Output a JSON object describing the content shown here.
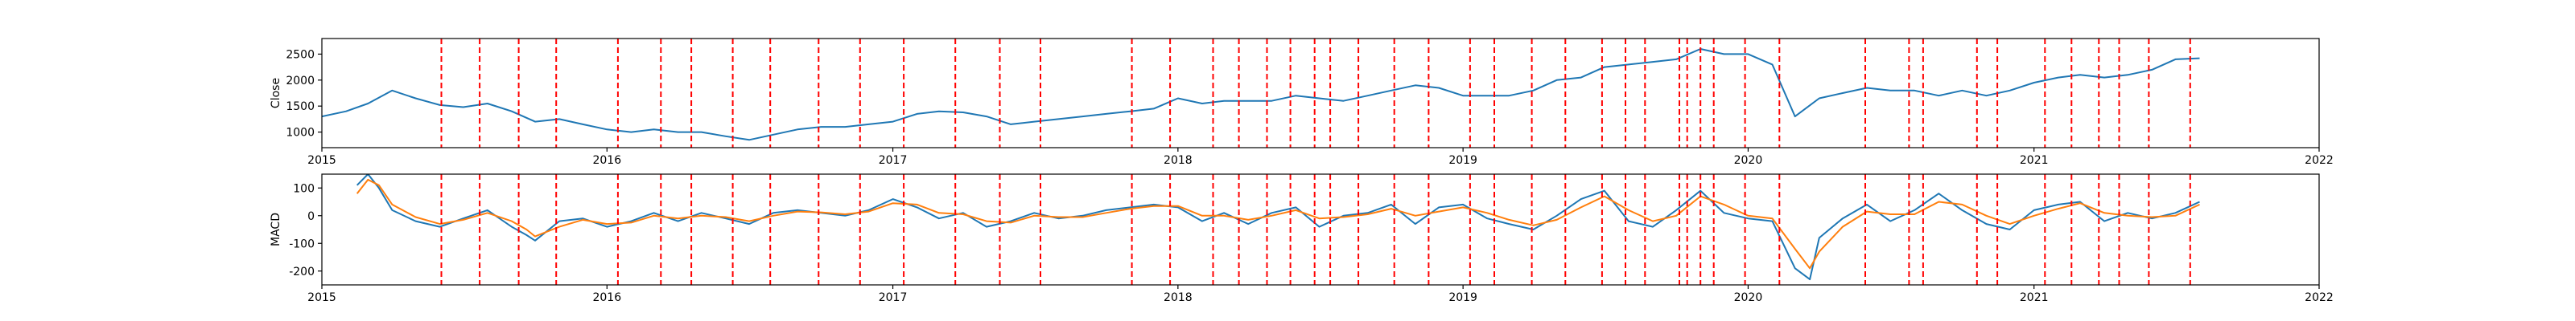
{
  "chart_data": [
    {
      "type": "line",
      "ylabel": "Close",
      "xlim": [
        "2015-01-01",
        "2022-01-01"
      ],
      "ylim": [
        700,
        2800
      ],
      "x_ticks": [
        "2015",
        "2016",
        "2017",
        "2018",
        "2019",
        "2020",
        "2021",
        "2022"
      ],
      "y_ticks": [
        1000,
        1500,
        2000,
        2500
      ],
      "grid": false,
      "series": [
        {
          "color": "#1f77b4",
          "x": [
            "2015-01-01",
            "2015-02-01",
            "2015-03-01",
            "2015-04-01",
            "2015-05-01",
            "2015-06-01",
            "2015-07-01",
            "2015-08-01",
            "2015-09-01",
            "2015-10-01",
            "2015-11-01",
            "2015-12-01",
            "2016-01-01",
            "2016-02-01",
            "2016-03-01",
            "2016-04-01",
            "2016-05-01",
            "2016-06-01",
            "2016-07-01",
            "2016-08-01",
            "2016-09-01",
            "2016-10-01",
            "2016-11-01",
            "2016-12-01",
            "2017-01-01",
            "2017-02-01",
            "2017-03-01",
            "2017-04-01",
            "2017-05-01",
            "2017-06-01",
            "2017-07-01",
            "2017-08-01",
            "2017-09-01",
            "2017-10-01",
            "2017-11-01",
            "2017-12-01",
            "2018-01-01",
            "2018-02-01",
            "2018-03-01",
            "2018-04-01",
            "2018-05-01",
            "2018-06-01",
            "2018-07-01",
            "2018-08-01",
            "2018-09-01",
            "2018-10-01",
            "2018-11-01",
            "2018-12-01",
            "2019-01-01",
            "2019-02-01",
            "2019-03-01",
            "2019-04-01",
            "2019-05-01",
            "2019-06-01",
            "2019-07-01",
            "2019-08-01",
            "2019-09-01",
            "2019-10-01",
            "2019-11-01",
            "2019-12-01",
            "2020-01-01",
            "2020-02-01",
            "2020-03-01",
            "2020-04-01",
            "2020-05-01",
            "2020-06-01",
            "2020-07-01",
            "2020-08-01",
            "2020-09-01",
            "2020-10-01",
            "2020-11-01",
            "2020-12-01",
            "2021-01-01",
            "2021-02-01",
            "2021-03-01",
            "2021-04-01",
            "2021-05-01",
            "2021-06-01",
            "2021-07-01",
            "2021-08-01"
          ],
          "values": [
            1300,
            1400,
            1550,
            1800,
            1650,
            1520,
            1480,
            1550,
            1400,
            1200,
            1250,
            1150,
            1050,
            1000,
            1050,
            1000,
            1000,
            920,
            850,
            950,
            1050,
            1100,
            1100,
            1150,
            1200,
            1350,
            1400,
            1380,
            1300,
            1150,
            1200,
            1250,
            1300,
            1350,
            1400,
            1450,
            1650,
            1550,
            1600,
            1600,
            1600,
            1700,
            1650,
            1600,
            1700,
            1800,
            1900,
            1850,
            1700,
            1700,
            1700,
            1800,
            2000,
            2050,
            2250,
            2300,
            2350,
            2400,
            2600,
            2500,
            2500,
            2300,
            1300,
            1650,
            1750,
            1850,
            1800,
            1800,
            1700,
            1800,
            1700,
            1800,
            1950,
            2050,
            2100,
            2050,
            2100,
            2200,
            2400,
            2420
          ]
        }
      ]
    },
    {
      "type": "line",
      "ylabel": "MACD",
      "xlim": [
        "2015-01-01",
        "2022-01-01"
      ],
      "ylim": [
        -250,
        150
      ],
      "x_ticks": [
        "2015",
        "2016",
        "2017",
        "2018",
        "2019",
        "2020",
        "2021",
        "2022"
      ],
      "y_ticks": [
        -200,
        -100,
        0,
        100
      ],
      "grid": false,
      "series": [
        {
          "color": "#1f77b4",
          "x": [
            "2015-02-15",
            "2015-03-01",
            "2015-03-15",
            "2015-04-01",
            "2015-05-01",
            "2015-06-01",
            "2015-07-01",
            "2015-08-01",
            "2015-09-01",
            "2015-09-20",
            "2015-10-01",
            "2015-11-01",
            "2015-12-01",
            "2016-01-01",
            "2016-02-01",
            "2016-03-01",
            "2016-04-01",
            "2016-05-01",
            "2016-06-01",
            "2016-07-01",
            "2016-08-01",
            "2016-09-01",
            "2016-10-01",
            "2016-11-01",
            "2016-12-01",
            "2017-01-01",
            "2017-02-01",
            "2017-03-01",
            "2017-04-01",
            "2017-05-01",
            "2017-06-01",
            "2017-07-01",
            "2017-08-01",
            "2017-09-01",
            "2017-10-01",
            "2017-11-01",
            "2017-12-01",
            "2018-01-01",
            "2018-02-01",
            "2018-03-01",
            "2018-04-01",
            "2018-05-01",
            "2018-06-01",
            "2018-07-01",
            "2018-08-01",
            "2018-09-01",
            "2018-10-01",
            "2018-11-01",
            "2018-12-01",
            "2019-01-01",
            "2019-02-01",
            "2019-03-01",
            "2019-04-01",
            "2019-05-01",
            "2019-06-01",
            "2019-07-01",
            "2019-08-01",
            "2019-09-01",
            "2019-10-01",
            "2019-11-01",
            "2019-12-01",
            "2020-01-01",
            "2020-02-01",
            "2020-03-01",
            "2020-03-20",
            "2020-04-01",
            "2020-05-01",
            "2020-06-01",
            "2020-07-01",
            "2020-08-01",
            "2020-09-01",
            "2020-10-01",
            "2020-11-01",
            "2020-12-01",
            "2021-01-01",
            "2021-02-01",
            "2021-03-01",
            "2021-04-01",
            "2021-05-01",
            "2021-06-01",
            "2021-07-01",
            "2021-08-01"
          ],
          "values": [
            110,
            150,
            100,
            20,
            -20,
            -40,
            -10,
            20,
            -40,
            -70,
            -90,
            -20,
            -10,
            -40,
            -20,
            10,
            -20,
            10,
            -10,
            -30,
            10,
            20,
            10,
            0,
            20,
            60,
            30,
            -10,
            10,
            -40,
            -20,
            10,
            -10,
            0,
            20,
            30,
            40,
            30,
            -20,
            10,
            -30,
            10,
            30,
            -40,
            0,
            10,
            40,
            -30,
            30,
            40,
            -10,
            -30,
            -50,
            0,
            60,
            90,
            -20,
            -40,
            20,
            90,
            10,
            -10,
            -20,
            -190,
            -230,
            -80,
            -10,
            40,
            -20,
            20,
            80,
            20,
            -30,
            -50,
            20,
            40,
            50,
            -20,
            10,
            -10,
            10,
            50
          ]
        },
        {
          "color": "#ff7f0e",
          "x": [
            "2015-02-15",
            "2015-03-01",
            "2015-03-15",
            "2015-04-01",
            "2015-05-01",
            "2015-06-01",
            "2015-07-01",
            "2015-08-01",
            "2015-09-01",
            "2015-09-20",
            "2015-10-01",
            "2015-11-01",
            "2015-12-01",
            "2016-01-01",
            "2016-02-01",
            "2016-03-01",
            "2016-04-01",
            "2016-05-01",
            "2016-06-01",
            "2016-07-01",
            "2016-08-01",
            "2016-09-01",
            "2016-10-01",
            "2016-11-01",
            "2016-12-01",
            "2017-01-01",
            "2017-02-01",
            "2017-03-01",
            "2017-04-01",
            "2017-05-01",
            "2017-06-01",
            "2017-07-01",
            "2017-08-01",
            "2017-09-01",
            "2017-10-01",
            "2017-11-01",
            "2017-12-01",
            "2018-01-01",
            "2018-02-01",
            "2018-03-01",
            "2018-04-01",
            "2018-05-01",
            "2018-06-01",
            "2018-07-01",
            "2018-08-01",
            "2018-09-01",
            "2018-10-01",
            "2018-11-01",
            "2018-12-01",
            "2019-01-01",
            "2019-02-01",
            "2019-03-01",
            "2019-04-01",
            "2019-05-01",
            "2019-06-01",
            "2019-07-01",
            "2019-08-01",
            "2019-09-01",
            "2019-10-01",
            "2019-11-01",
            "2019-12-01",
            "2020-01-01",
            "2020-02-01",
            "2020-03-01",
            "2020-03-20",
            "2020-04-01",
            "2020-05-01",
            "2020-06-01",
            "2020-07-01",
            "2020-08-01",
            "2020-09-01",
            "2020-10-01",
            "2020-11-01",
            "2020-12-01",
            "2021-01-01",
            "2021-02-01",
            "2021-03-01",
            "2021-04-01",
            "2021-05-01",
            "2021-06-01",
            "2021-07-01",
            "2021-08-01"
          ],
          "values": [
            80,
            130,
            110,
            40,
            -5,
            -30,
            -15,
            10,
            -20,
            -50,
            -75,
            -40,
            -15,
            -30,
            -25,
            0,
            -10,
            0,
            -5,
            -20,
            0,
            15,
            12,
            5,
            15,
            45,
            40,
            10,
            5,
            -20,
            -25,
            0,
            -5,
            -5,
            10,
            25,
            35,
            35,
            0,
            0,
            -15,
            0,
            20,
            -10,
            -5,
            5,
            25,
            0,
            15,
            30,
            10,
            -15,
            -35,
            -15,
            30,
            70,
            20,
            -20,
            0,
            70,
            40,
            0,
            -10,
            -120,
            -190,
            -130,
            -40,
            15,
            5,
            5,
            50,
            40,
            0,
            -30,
            0,
            25,
            45,
            10,
            0,
            -5,
            0,
            40
          ]
        }
      ]
    }
  ],
  "signal_dates": [
    "2015-06-03",
    "2015-07-22",
    "2015-09-10",
    "2015-10-28",
    "2016-01-15",
    "2016-03-10",
    "2016-04-18",
    "2016-06-10",
    "2016-07-28",
    "2016-09-28",
    "2016-11-20",
    "2017-01-15",
    "2017-03-22",
    "2017-05-18",
    "2017-07-09",
    "2017-11-03",
    "2017-12-22",
    "2018-02-15",
    "2018-03-20",
    "2018-04-25",
    "2018-05-25",
    "2018-06-25",
    "2018-07-15",
    "2018-08-20",
    "2018-10-05",
    "2018-11-18",
    "2019-01-10",
    "2019-02-10",
    "2019-03-30",
    "2019-05-12",
    "2019-06-28",
    "2019-07-28",
    "2019-08-22",
    "2019-10-05",
    "2019-10-15",
    "2019-11-01",
    "2019-11-18",
    "2019-12-28",
    "2020-02-10",
    "2020-05-30",
    "2020-07-25",
    "2020-08-12",
    "2020-10-20",
    "2020-11-15",
    "2021-01-15",
    "2021-02-18",
    "2021-03-25",
    "2021-04-20",
    "2021-05-28",
    "2021-07-20"
  ]
}
